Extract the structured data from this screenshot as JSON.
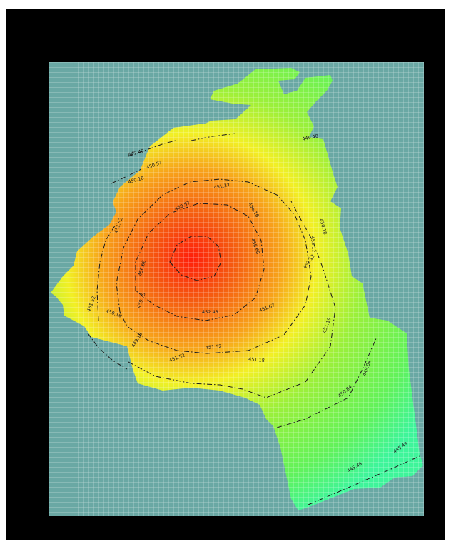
{
  "colors": {
    "frame": "#000000",
    "background": "#6aa8a4",
    "grid": "#ffffff",
    "low": "#3ef59a",
    "mid_low": "#9bf03a",
    "mid": "#f2f025",
    "mid_high": "#f7a31a",
    "high": "#ff1e0a",
    "contour": "#1a1a1a"
  },
  "map": {
    "type": "contour-heatmap",
    "grid_visible": true,
    "contours": [
      {
        "labels": [
          {
            "text": "445.49",
            "angle": 0
          },
          {
            "text": "449.40",
            "angle": -10
          },
          {
            "text": "445.49",
            "angle": -35
          }
        ]
      },
      {
        "labels": [
          {
            "text": "449.40",
            "angle": -15
          },
          {
            "text": "450.57",
            "angle": -20
          },
          {
            "text": "449.84",
            "angle": -70
          }
        ]
      },
      {
        "labels": [
          {
            "text": "450.18",
            "angle": -15
          },
          {
            "text": "450.57",
            "angle": -25
          },
          {
            "text": "450.16",
            "angle": 20
          },
          {
            "text": "450.84",
            "angle": -40
          }
        ]
      },
      {
        "labels": [
          {
            "text": "451.52",
            "angle": -20
          },
          {
            "text": "449.18",
            "angle": -60
          },
          {
            "text": "450.18",
            "angle": 75
          },
          {
            "text": "451.19",
            "angle": -70
          }
        ]
      },
      {
        "labels": [
          {
            "text": "451.52",
            "angle": -70
          },
          {
            "text": "452.12",
            "angle": -55
          },
          {
            "text": "451.52",
            "angle": -5
          },
          {
            "text": "451.18",
            "angle": 5
          }
        ]
      },
      {
        "labels": [
          {
            "text": "451.52",
            "angle": -70
          },
          {
            "text": "452.12",
            "angle": 85
          }
        ]
      },
      {
        "labels": [
          {
            "text": "451.37",
            "angle": -10
          },
          {
            "text": "451.67",
            "angle": -20
          },
          {
            "text": "456.16",
            "angle": 60
          }
        ]
      },
      {
        "labels": [
          {
            "text": "456.68",
            "angle": -75
          },
          {
            "text": "456.68",
            "angle": 70
          },
          {
            "text": "452.43",
            "angle": 0
          }
        ]
      },
      {
        "labels": [
          {
            "text": "459.75",
            "angle": -70
          }
        ]
      }
    ]
  }
}
